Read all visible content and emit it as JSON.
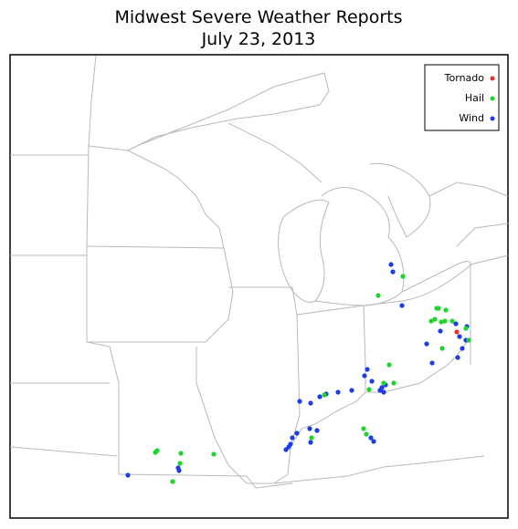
{
  "title": [
    "Midwest Severe Weather Reports",
    "July 23, 2013"
  ],
  "legend": [
    {
      "label": "Tornado",
      "color": "#e8302c"
    },
    {
      "label": "Hail",
      "color": "#1ed42a"
    },
    {
      "label": "Wind",
      "color": "#1c3ce8"
    }
  ]
}
